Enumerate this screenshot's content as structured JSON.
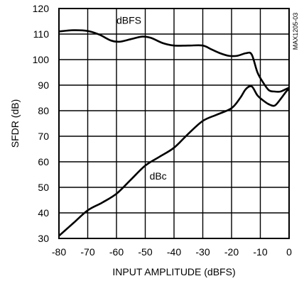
{
  "chart_data": {
    "type": "line",
    "title": "",
    "xlabel": "INPUT AMPLITUDE (dBFS)",
    "ylabel": "SFDR (dB)",
    "xlim": [
      -80,
      0
    ],
    "ylim": [
      30,
      120
    ],
    "x_ticks": [
      -80,
      -70,
      -60,
      -50,
      -40,
      -30,
      -20,
      -10,
      0
    ],
    "y_ticks": [
      30,
      40,
      50,
      60,
      70,
      80,
      90,
      100,
      110,
      120
    ],
    "x_tick_labels": [
      "-80",
      "-70",
      "-60",
      "-50",
      "-40",
      "-30",
      "-20",
      "-10",
      "0"
    ],
    "y_tick_labels": [
      "30",
      "40",
      "50",
      "60",
      "70",
      "80",
      "90",
      "100",
      "110",
      "120"
    ],
    "grid": true,
    "line_color": "#000000",
    "series": [
      {
        "name": "dBFS",
        "x": [
          -80,
          -75,
          -70,
          -66,
          -62,
          -59,
          -55,
          -51,
          -48,
          -44,
          -40,
          -35,
          -30,
          -27,
          -24,
          -21,
          -18,
          -15,
          -13,
          -11,
          -9,
          -7,
          -5,
          -3,
          -1,
          0
        ],
        "y": [
          111,
          111.5,
          111.2,
          109.8,
          107.5,
          107,
          108,
          109,
          108.5,
          106.5,
          105.5,
          105.5,
          105.5,
          104,
          102.5,
          101.5,
          101.5,
          102.5,
          102,
          95,
          91,
          88,
          87.5,
          87.5,
          88.5,
          89
        ]
      },
      {
        "name": "dBc",
        "x": [
          -80,
          -75,
          -70,
          -65,
          -60,
          -55,
          -50,
          -45,
          -40,
          -35,
          -30,
          -25,
          -20,
          -17,
          -15,
          -13,
          -11,
          -9,
          -7,
          -5,
          -3,
          -1,
          0
        ],
        "y": [
          31,
          36,
          41,
          44,
          47.5,
          53,
          58.5,
          62,
          65.5,
          71,
          76,
          78.5,
          81,
          85,
          88.5,
          89.5,
          86,
          84,
          82.5,
          82,
          84.5,
          87.5,
          88.5
        ]
      }
    ],
    "annotations": [
      {
        "text": "dBFS",
        "series": "dBFS"
      },
      {
        "text": "dBc",
        "series": "dBc"
      }
    ],
    "figure_code": "MAX1205-03"
  }
}
